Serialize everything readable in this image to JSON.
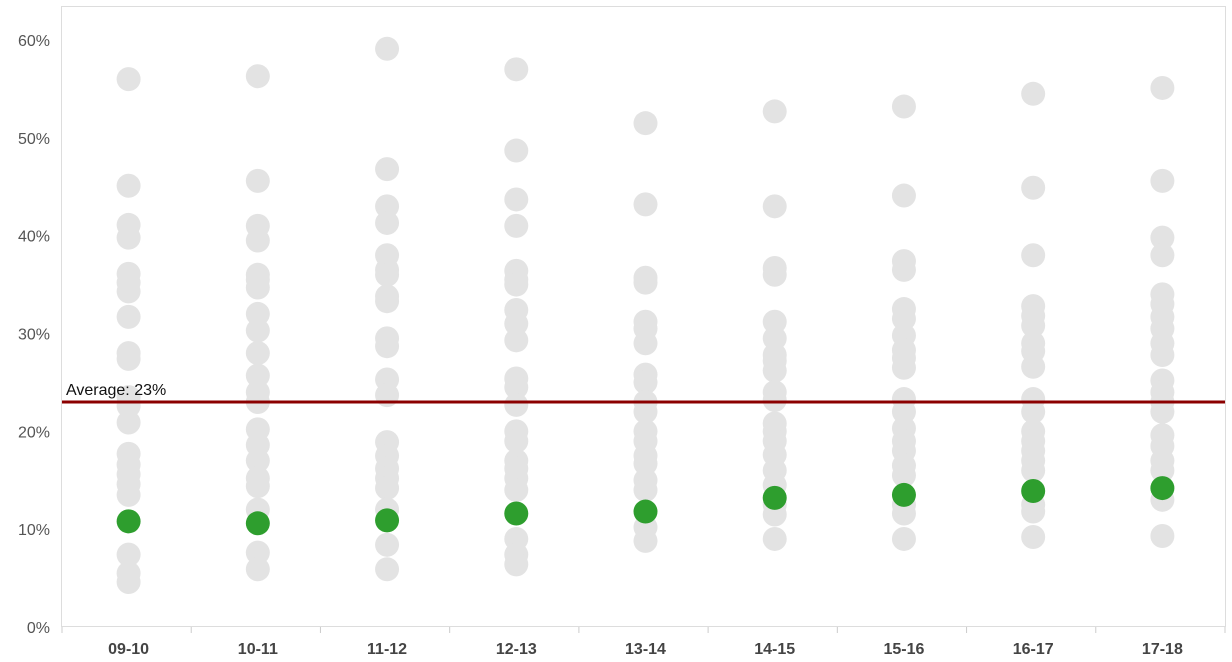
{
  "chart_data": {
    "type": "scatter",
    "categories": [
      "09-10",
      "10-11",
      "11-12",
      "12-13",
      "13-14",
      "14-15",
      "15-16",
      "16-17",
      "17-18"
    ],
    "ylim": [
      0,
      0.6
    ],
    "ytick_labels": [
      "0%",
      "10%",
      "20%",
      "30%",
      "40%",
      "50%",
      "60%"
    ],
    "xlabel": "",
    "ylabel": "",
    "grid": false,
    "reference_line": {
      "value": 0.23,
      "label": "Average: 23%",
      "color": "#8B0000"
    },
    "series": [
      {
        "color": "#e3e3e3",
        "points": [
          [
            0,
            [
              0.56,
              0.451,
              0.411,
              0.398,
              0.361,
              0.352,
              0.343,
              0.317,
              0.28,
              0.274,
              0.235,
              0.226,
              0.209,
              0.177,
              0.166,
              0.156,
              0.146,
              0.135,
              0.074,
              0.055,
              0.046
            ]
          ],
          [
            1,
            [
              0.563,
              0.456,
              0.41,
              0.395,
              0.36,
              0.355,
              0.347,
              0.32,
              0.303,
              0.28,
              0.257,
              0.24,
              0.23,
              0.202,
              0.186,
              0.17,
              0.152,
              0.144,
              0.12,
              0.076,
              0.059
            ]
          ],
          [
            2,
            [
              0.591,
              0.468,
              0.43,
              0.413,
              0.38,
              0.365,
              0.36,
              0.338,
              0.333,
              0.295,
              0.287,
              0.253,
              0.237,
              0.189,
              0.175,
              0.162,
              0.152,
              0.142,
              0.12,
              0.084,
              0.059
            ]
          ],
          [
            3,
            [
              0.57,
              0.487,
              0.437,
              0.41,
              0.364,
              0.355,
              0.35,
              0.324,
              0.31,
              0.293,
              0.254,
              0.245,
              0.227,
              0.2,
              0.19,
              0.17,
              0.162,
              0.152,
              0.14,
              0.09,
              0.074,
              0.064
            ]
          ],
          [
            4,
            [
              0.515,
              0.432,
              0.357,
              0.352,
              0.312,
              0.305,
              0.29,
              0.258,
              0.25,
              0.23,
              0.22,
              0.2,
              0.19,
              0.175,
              0.167,
              0.15,
              0.14,
              0.102,
              0.088
            ]
          ],
          [
            5,
            [
              0.527,
              0.43,
              0.367,
              0.36,
              0.312,
              0.295,
              0.278,
              0.272,
              0.262,
              0.24,
              0.232,
              0.208,
              0.2,
              0.19,
              0.176,
              0.16,
              0.145,
              0.125,
              0.115,
              0.09
            ]
          ],
          [
            6,
            [
              0.532,
              0.441,
              0.374,
              0.365,
              0.325,
              0.315,
              0.298,
              0.283,
              0.275,
              0.265,
              0.233,
              0.22,
              0.203,
              0.19,
              0.18,
              0.165,
              0.155,
              0.125,
              0.116,
              0.09
            ]
          ],
          [
            7,
            [
              0.545,
              0.449,
              0.38,
              0.328,
              0.318,
              0.308,
              0.29,
              0.282,
              0.266,
              0.233,
              0.22,
              0.2,
              0.19,
              0.18,
              0.17,
              0.16,
              0.125,
              0.118,
              0.092
            ]
          ],
          [
            8,
            [
              0.551,
              0.456,
              0.398,
              0.38,
              0.34,
              0.33,
              0.317,
              0.305,
              0.29,
              0.278,
              0.252,
              0.24,
              0.23,
              0.22,
              0.196,
              0.185,
              0.17,
              0.16,
              0.13,
              0.093
            ]
          ]
        ]
      },
      {
        "color": "#2e9e2e",
        "points": [
          [
            0,
            [
              0.108
            ]
          ],
          [
            1,
            [
              0.106
            ]
          ],
          [
            2,
            [
              0.109
            ]
          ],
          [
            3,
            [
              0.116
            ]
          ],
          [
            4,
            [
              0.118
            ]
          ],
          [
            5,
            [
              0.132
            ]
          ],
          [
            6,
            [
              0.135
            ]
          ],
          [
            7,
            [
              0.139
            ]
          ],
          [
            8,
            [
              0.142
            ]
          ]
        ]
      }
    ]
  }
}
